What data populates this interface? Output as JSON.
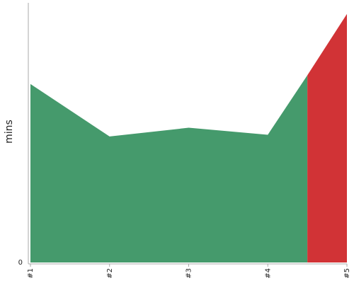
{
  "chart_data": {
    "type": "area",
    "ylabel": "mins",
    "xlabel": "",
    "categories": [
      "#1",
      "#2",
      "#3",
      "#4",
      "#5"
    ],
    "y_ticks": [
      {
        "value": 0,
        "label": "0"
      }
    ],
    "ylim": [
      0,
      30
    ],
    "grid": false,
    "series": [
      {
        "points": [
          {
            "x": 1,
            "y": 20.4
          },
          {
            "x": 2,
            "y": 14.4
          },
          {
            "x": 3,
            "y": 15.4
          },
          {
            "x": 4,
            "y": 14.6
          },
          {
            "x": 4.5,
            "y": 21.4
          }
        ],
        "color": "#459a6c"
      },
      {
        "points": [
          {
            "x": 4.5,
            "y": 21.4
          },
          {
            "x": 5,
            "y": 28.4
          }
        ],
        "color": "#d13336"
      }
    ]
  }
}
